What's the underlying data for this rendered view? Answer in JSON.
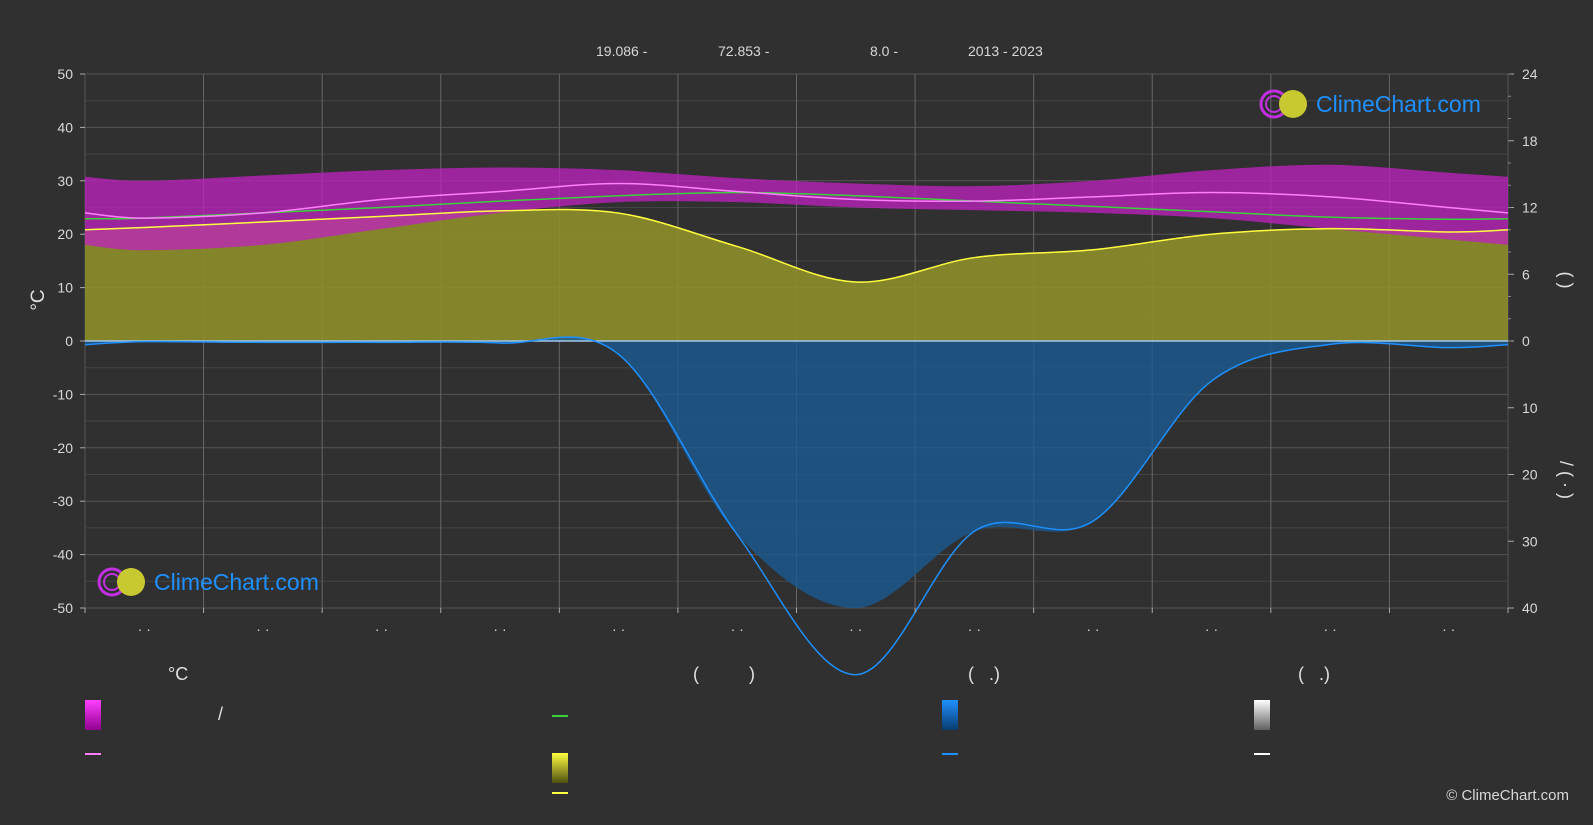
{
  "header": {
    "lat": "19.086 -",
    "lon": "72.853 -",
    "elev": "8.0 -",
    "years": "2013 - 2023"
  },
  "logo_text": "ClimeChart.com",
  "copyright": "© ClimeChart.com",
  "colors": {
    "background": "#303030",
    "daily_range": "#d020d0",
    "avg_temp_line": "#ff7fff",
    "green_line": "#3ad23a",
    "sunshine": "#c0c020",
    "sunshine_line": "#ffff40",
    "precip": "#1e6eb0",
    "precip_line": "#1e90ff",
    "snow_line": "#ffffff"
  },
  "legend": {
    "col1": {
      "heading": "°C",
      "item1": "/"
    },
    "col2": {
      "heading": "(          )"
    },
    "col3": {
      "heading": "(   .)"
    },
    "col4": {
      "heading": "(   .)"
    }
  },
  "chart_data": {
    "type": "line",
    "categories": [
      "· ·",
      "· ·",
      "· ·",
      "· ·",
      "· ·",
      "· ·",
      "· ·",
      "· ·",
      "· ·",
      "· ·",
      "· ·",
      "· ·"
    ],
    "y_left": {
      "label": "°C",
      "range": [
        -50,
        50
      ],
      "ticks": [
        50,
        40,
        30,
        20,
        10,
        0,
        -10,
        -20,
        -30,
        -40,
        -50
      ]
    },
    "y_right_top": {
      "range": [
        0,
        24
      ],
      "ticks": [
        24,
        18,
        12,
        6,
        0
      ],
      "label": "(        )"
    },
    "y_right_bottom": {
      "range": [
        0,
        40
      ],
      "ticks": [
        0,
        10,
        20,
        30,
        40
      ],
      "label": "/   (  ·  )"
    },
    "series": [
      {
        "key": "tmax",
        "values": [
          30,
          31,
          32,
          32.5,
          32,
          30.5,
          29.5,
          29,
          30,
          32,
          33,
          31.5
        ]
      },
      {
        "key": "tmin",
        "values": [
          17,
          18,
          21,
          24,
          26,
          26,
          25,
          24.5,
          24,
          23,
          21,
          19
        ]
      },
      {
        "key": "tavg",
        "values": [
          23,
          24,
          26.5,
          28,
          29.5,
          28,
          26.5,
          26.2,
          27,
          27.8,
          27,
          25
        ]
      },
      {
        "key": "green",
        "values": [
          23,
          24,
          25,
          26.2,
          27.2,
          27.8,
          27.2,
          26.2,
          25.2,
          24.2,
          23.2,
          22.8
        ]
      },
      {
        "key": "sunshine_hours",
        "values": [
          10.2,
          10.7,
          11.2,
          11.7,
          11.5,
          8.5,
          5.3,
          7.5,
          8.2,
          9.6,
          10.1,
          9.8
        ]
      },
      {
        "key": "precip_mm",
        "values": [
          0.1,
          0.2,
          0.2,
          0.3,
          2.0,
          29.0,
          50.0,
          28.5,
          27.0,
          6.0,
          0.5,
          1.0
        ]
      }
    ]
  }
}
